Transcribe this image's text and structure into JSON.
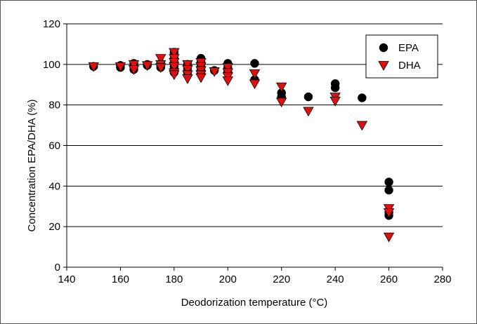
{
  "chart_data": {
    "type": "scatter",
    "xlabel": "Deodorization temperature (°C)",
    "ylabel": "Concentration EPA/DHA (%)",
    "xlim": [
      140,
      280
    ],
    "ylim": [
      0,
      120
    ],
    "x_ticks": [
      "140",
      "160",
      "180",
      "200",
      "220",
      "240",
      "260",
      "280"
    ],
    "y_ticks": [
      "0",
      "20",
      "40",
      "60",
      "80",
      "100",
      "120"
    ],
    "grid": "horizontal",
    "legend_position": "top-right",
    "series": [
      {
        "name": "EPA",
        "marker": "circle",
        "color": "#000000",
        "points": [
          [
            150,
            99
          ],
          [
            160,
            99.5
          ],
          [
            160,
            98.5
          ],
          [
            165,
            100.5
          ],
          [
            165,
            99
          ],
          [
            165,
            97.5
          ],
          [
            170,
            100
          ],
          [
            170,
            99.5
          ],
          [
            175,
            100.5
          ],
          [
            175,
            99.5
          ],
          [
            175,
            98.5
          ],
          [
            180,
            106
          ],
          [
            180,
            103
          ],
          [
            180,
            101
          ],
          [
            180,
            99
          ],
          [
            180,
            97.5
          ],
          [
            180,
            96
          ],
          [
            185,
            100
          ],
          [
            185,
            98
          ],
          [
            185,
            96
          ],
          [
            190,
            103
          ],
          [
            190,
            101
          ],
          [
            190,
            99
          ],
          [
            190,
            97
          ],
          [
            190,
            95.5
          ],
          [
            195,
            97
          ],
          [
            200,
            100.5
          ],
          [
            200,
            98.5
          ],
          [
            200,
            96.5
          ],
          [
            210,
            100.5
          ],
          [
            210,
            92.5
          ],
          [
            220,
            86
          ],
          [
            220,
            84
          ],
          [
            230,
            84
          ],
          [
            240,
            90.5
          ],
          [
            240,
            88.5
          ],
          [
            250,
            83.5
          ],
          [
            260,
            42
          ],
          [
            260,
            38
          ],
          [
            260,
            27
          ],
          [
            260,
            25.5
          ]
        ]
      },
      {
        "name": "DHA",
        "marker": "triangle-down",
        "color": "#e01010",
        "points": [
          [
            150,
            99
          ],
          [
            160,
            99
          ],
          [
            165,
            100
          ],
          [
            165,
            97.5
          ],
          [
            170,
            99.5
          ],
          [
            175,
            103
          ],
          [
            175,
            100
          ],
          [
            175,
            98.5
          ],
          [
            180,
            106
          ],
          [
            180,
            103
          ],
          [
            180,
            101
          ],
          [
            180,
            99
          ],
          [
            180,
            96
          ],
          [
            180,
            95
          ],
          [
            185,
            100
          ],
          [
            185,
            97.5
          ],
          [
            185,
            95
          ],
          [
            185,
            93
          ],
          [
            190,
            101
          ],
          [
            190,
            99
          ],
          [
            190,
            97
          ],
          [
            190,
            95
          ],
          [
            190,
            93.5
          ],
          [
            195,
            96.5
          ],
          [
            200,
            98.5
          ],
          [
            200,
            96
          ],
          [
            200,
            94
          ],
          [
            200,
            92
          ],
          [
            210,
            95.5
          ],
          [
            210,
            90.5
          ],
          [
            220,
            89
          ],
          [
            220,
            81.5
          ],
          [
            230,
            77
          ],
          [
            240,
            84
          ],
          [
            240,
            82
          ],
          [
            250,
            70
          ],
          [
            260,
            29
          ],
          [
            260,
            27
          ],
          [
            260,
            15
          ]
        ]
      }
    ]
  }
}
